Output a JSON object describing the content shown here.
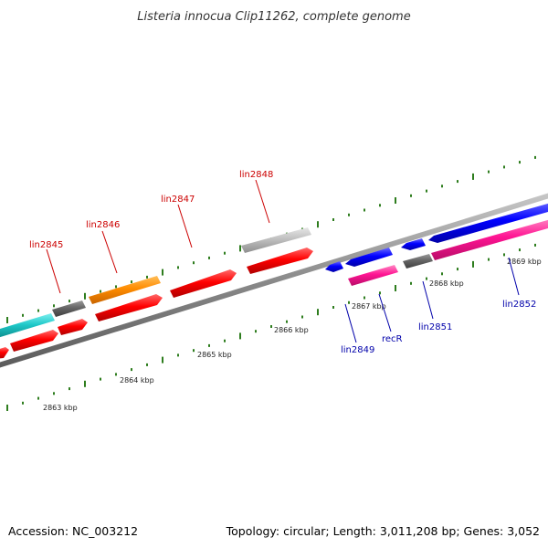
{
  "title": "Listeria innocua Clip11262, complete genome",
  "footer": {
    "accession": "Accession: NC_003212",
    "topology": "Topology: circular; Length: 3,011,208 bp; Genes: 3,052"
  },
  "colors": {
    "forward_label": "#cc0000",
    "reverse_label": "#0000aa",
    "tick": "#2e7d1e",
    "backbone": "#888888"
  },
  "scale_labels": [
    "2863 kbp",
    "2864 kbp",
    "2865 kbp",
    "2866 kbp",
    "2867 kbp",
    "2868 kbp",
    "2869 kbp"
  ],
  "genes_forward": [
    {
      "label": "lin2845",
      "color": "#ff0000"
    },
    {
      "label": "lin2846",
      "color": "#ff8c00"
    },
    {
      "label": "lin2847",
      "color": "#ff0000"
    },
    {
      "label": "lin2848",
      "color": "#c0c0c0"
    }
  ],
  "genes_reverse": [
    {
      "label": "lin2849",
      "color": "#0000ff"
    },
    {
      "label": "recR",
      "color": "#ff1493"
    },
    {
      "label": "lin2851",
      "color": "#666666"
    },
    {
      "label": "lin2852",
      "color": "#0000ff"
    }
  ]
}
